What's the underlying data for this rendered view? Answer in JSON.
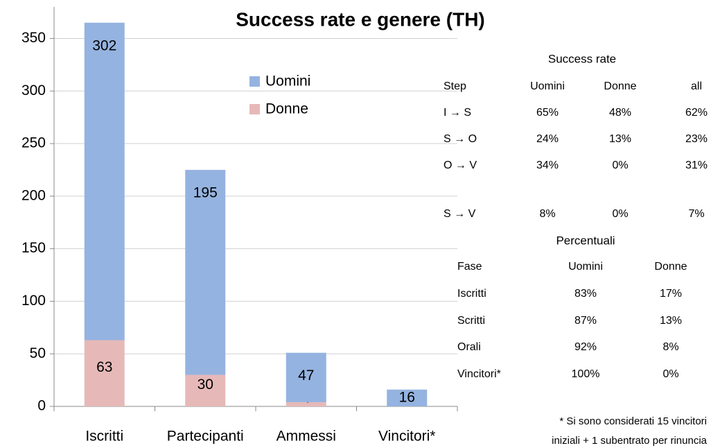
{
  "chart_data": {
    "type": "stacked_bar",
    "title": "Success rate e genere (TH)",
    "categories": [
      "Iscritti",
      "Partecipanti",
      "Ammessi",
      "Vincitori*"
    ],
    "series": [
      {
        "name": "Donne",
        "color": "#e6b9b8",
        "values": [
          63,
          30,
          4,
          null
        ]
      },
      {
        "name": "Uomini",
        "color": "#95b3e0",
        "values": [
          302,
          195,
          47,
          16
        ]
      }
    ],
    "ylim": [
      0,
      380
    ],
    "yticks": [
      0,
      50,
      100,
      150,
      200,
      250,
      300,
      350
    ],
    "grid": true
  },
  "success_rate": {
    "title": "Success rate",
    "header": [
      "Step",
      "Uomini",
      "Donne",
      "all"
    ],
    "rows": [
      [
        "I  →  S",
        "65%",
        "48%",
        "62%"
      ],
      [
        "S  →  O",
        "24%",
        "13%",
        "23%"
      ],
      [
        "O  →  V",
        "34%",
        "0%",
        "31%"
      ],
      [
        "S  →  V",
        "8%",
        "0%",
        "7%"
      ]
    ]
  },
  "percentuali": {
    "title": "Percentuali",
    "header": [
      "Fase",
      "Uomini",
      "Donne"
    ],
    "rows": [
      [
        "Iscritti",
        "83%",
        "17%"
      ],
      [
        "Scritti",
        "87%",
        "13%"
      ],
      [
        "Orali",
        "92%",
        "8%"
      ],
      [
        "Vincitori*",
        "100%",
        "0%"
      ]
    ]
  },
  "footnote": [
    "*  Si sono considerati 15 vincitori",
    "iniziali + 1  subentrato per rinuncia"
  ]
}
